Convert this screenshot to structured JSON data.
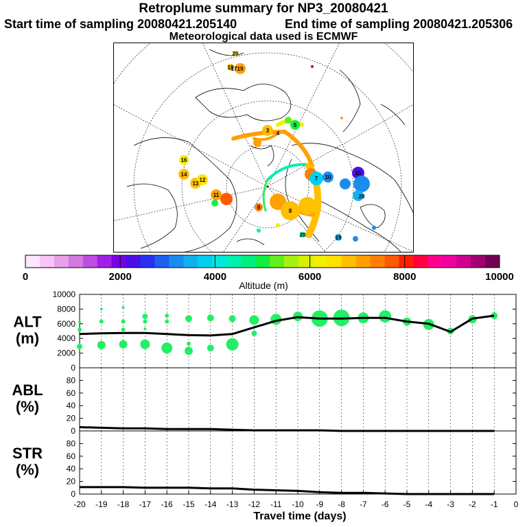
{
  "header": {
    "title": "Retroplume summary for NP3_20080421",
    "start_label": "Start time of sampling 20080421.205140",
    "end_label": "End time of sampling 20080421.205306",
    "meteo_label": "Meteorological data used is ECMWF"
  },
  "map": {
    "day_markers": [
      {
        "label": "20"
      },
      {
        "label": "19"
      },
      {
        "label": "18"
      },
      {
        "label": "17"
      },
      {
        "label": "16"
      },
      {
        "label": "14"
      },
      {
        "label": "13"
      },
      {
        "label": "12"
      },
      {
        "label": "11"
      },
      {
        "label": "9"
      },
      {
        "label": "8"
      },
      {
        "label": "4"
      },
      {
        "label": "3"
      },
      {
        "label": "5"
      },
      {
        "label": "7"
      },
      {
        "label": "10"
      },
      {
        "label": "15"
      },
      {
        "label": "19"
      },
      {
        "label": "20"
      },
      {
        "label": "20"
      }
    ]
  },
  "colorbar": {
    "title": "Altitude (m)",
    "tick_labels": [
      "0",
      "2000",
      "4000",
      "6000",
      "8000",
      "10000"
    ],
    "colors": [
      "#ffe6ff",
      "#f6c6f6",
      "#e8a2ea",
      "#d67ae0",
      "#c04ee0",
      "#a020e8",
      "#7a00e8",
      "#4a10e8",
      "#2a30f0",
      "#1e60f0",
      "#1a8cf0",
      "#10b0f0",
      "#00d0f0",
      "#00e8e0",
      "#00f0b0",
      "#00f080",
      "#10f040",
      "#60f020",
      "#a8f010",
      "#d8f000",
      "#f0f000",
      "#ffe000",
      "#ffc000",
      "#ffa000",
      "#ff8000",
      "#ff5a00",
      "#ff2000",
      "#ff0040",
      "#ff0090",
      "#f000a0",
      "#d00090",
      "#a00070",
      "#700050"
    ]
  },
  "chart_data": [
    {
      "type": "line",
      "name": "ALT",
      "ylabel": "ALT\n(m)",
      "ylim": [
        0,
        10000
      ],
      "yticks": [
        0,
        2000,
        4000,
        6000,
        8000,
        10000
      ],
      "xlim": [
        -20,
        0
      ],
      "x": [
        -20,
        -19,
        -18,
        -17,
        -16,
        -15,
        -14,
        -13,
        -12,
        -11,
        -10,
        -9,
        -8,
        -7,
        -6,
        -5,
        -4,
        -3,
        -2,
        -1
      ],
      "values": [
        4600,
        4700,
        4750,
        4750,
        4600,
        4450,
        4400,
        4600,
        5500,
        6400,
        6900,
        6700,
        6700,
        6800,
        6800,
        6300,
        6000,
        4900,
        6700,
        7100
      ],
      "points": [
        {
          "x": -20,
          "y": 2900,
          "s": 4
        },
        {
          "x": -20,
          "y": 5200,
          "s": 3
        },
        {
          "x": -20,
          "y": 6200,
          "s": 2
        },
        {
          "x": -19,
          "y": 3100,
          "s": 6
        },
        {
          "x": -19,
          "y": 6300,
          "s": 3
        },
        {
          "x": -19,
          "y": 8000,
          "s": 2
        },
        {
          "x": -18,
          "y": 3200,
          "s": 6
        },
        {
          "x": -18,
          "y": 5200,
          "s": 3
        },
        {
          "x": -18,
          "y": 6300,
          "s": 3
        },
        {
          "x": -18,
          "y": 8200,
          "s": 2
        },
        {
          "x": -17,
          "y": 3200,
          "s": 7
        },
        {
          "x": -17,
          "y": 5300,
          "s": 2
        },
        {
          "x": -17,
          "y": 6300,
          "s": 3
        },
        {
          "x": -17,
          "y": 7000,
          "s": 4
        },
        {
          "x": -16,
          "y": 2700,
          "s": 8
        },
        {
          "x": -16,
          "y": 6300,
          "s": 3
        },
        {
          "x": -16,
          "y": 7100,
          "s": 3
        },
        {
          "x": -15,
          "y": 2300,
          "s": 6
        },
        {
          "x": -15,
          "y": 3300,
          "s": 3
        },
        {
          "x": -15,
          "y": 6700,
          "s": 5
        },
        {
          "x": -14,
          "y": 2700,
          "s": 5
        },
        {
          "x": -14,
          "y": 6800,
          "s": 5
        },
        {
          "x": -13,
          "y": 3200,
          "s": 9
        },
        {
          "x": -13,
          "y": 6700,
          "s": 5
        },
        {
          "x": -12,
          "y": 4700,
          "s": 4
        },
        {
          "x": -12,
          "y": 6500,
          "s": 7
        },
        {
          "x": -11,
          "y": 6600,
          "s": 8
        },
        {
          "x": -10,
          "y": 7000,
          "s": 7
        },
        {
          "x": -9,
          "y": 6700,
          "s": 12
        },
        {
          "x": -9,
          "y": 5800,
          "s": 2
        },
        {
          "x": -8,
          "y": 6800,
          "s": 12
        },
        {
          "x": -8,
          "y": 5800,
          "s": 2
        },
        {
          "x": -7,
          "y": 6800,
          "s": 8
        },
        {
          "x": -6,
          "y": 7000,
          "s": 9
        },
        {
          "x": -5,
          "y": 6300,
          "s": 6
        },
        {
          "x": -4,
          "y": 5900,
          "s": 8
        },
        {
          "x": -3,
          "y": 5000,
          "s": 5
        },
        {
          "x": -2,
          "y": 6600,
          "s": 6
        },
        {
          "x": -1,
          "y": 7100,
          "s": 5
        }
      ]
    },
    {
      "type": "line",
      "name": "ABL",
      "ylabel": "ABL\n(%)",
      "ylim": [
        0,
        100
      ],
      "yticks": [
        0,
        20,
        40,
        60,
        80
      ],
      "xlim": [
        -20,
        0
      ],
      "x": [
        -20,
        -19,
        -18,
        -17,
        -16,
        -15,
        -14,
        -13,
        -12,
        -11,
        -10,
        -9,
        -8,
        -7,
        -6,
        -5,
        -4,
        -3,
        -2,
        -1
      ],
      "values": [
        6,
        5,
        4,
        4,
        3,
        3,
        3,
        2,
        1,
        1,
        1,
        1,
        0,
        0,
        0,
        0,
        0,
        0,
        0,
        0
      ]
    },
    {
      "type": "line",
      "name": "STR",
      "ylabel": "STR\n(%)",
      "ylim": [
        0,
        100
      ],
      "yticks": [
        0,
        20,
        40,
        60,
        80
      ],
      "xlim": [
        -20,
        0
      ],
      "xlabel": "Travel time (days)",
      "x": [
        -20,
        -19,
        -18,
        -17,
        -16,
        -15,
        -14,
        -13,
        -12,
        -11,
        -10,
        -9,
        -8,
        -7,
        -6,
        -5,
        -4,
        -3,
        -2,
        -1
      ],
      "values": [
        11,
        11,
        11,
        10,
        10,
        10,
        9,
        9,
        7,
        6,
        5,
        3,
        2,
        2,
        1,
        0,
        0,
        0,
        0,
        0
      ]
    }
  ],
  "xaxis": {
    "tick_labels": [
      "-20",
      "-19",
      "-18",
      "-17",
      "-16",
      "-15",
      "-14",
      "-13",
      "-12",
      "-11",
      "-10",
      "-9",
      "-8",
      "-7",
      "-6",
      "-5",
      "-4",
      "-3",
      "-2",
      "-1",
      "0"
    ]
  }
}
